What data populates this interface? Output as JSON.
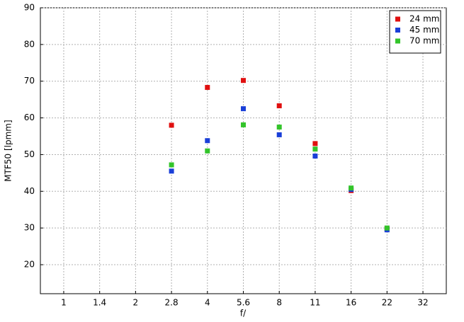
{
  "chart_data": {
    "type": "scatter",
    "x_label": "f/",
    "y_label": "MTF50 [lpmm]",
    "categories": [
      "1",
      "1.4",
      "2",
      "2.8",
      "4",
      "5.6",
      "8",
      "11",
      "16",
      "22",
      "32"
    ],
    "series": [
      {
        "name": "24 mm",
        "color": "#e01010",
        "values": [
          null,
          null,
          null,
          58.0,
          68.3,
          70.2,
          63.3,
          53.0,
          40.2,
          29.8,
          null
        ]
      },
      {
        "name": "45 mm",
        "color": "#1a3fd8",
        "values": [
          null,
          null,
          null,
          45.5,
          53.8,
          62.5,
          55.4,
          49.6,
          40.5,
          29.5,
          null
        ]
      },
      {
        "name": "70 mm",
        "color": "#33c42a",
        "values": [
          null,
          null,
          null,
          47.2,
          51.0,
          58.1,
          57.5,
          51.5,
          40.9,
          30.0,
          null
        ]
      }
    ],
    "ylim": [
      12.1,
      90
    ],
    "yticks": [
      20,
      30,
      40,
      50,
      60,
      70,
      80,
      90
    ],
    "grid": true,
    "legend": "upper right"
  }
}
